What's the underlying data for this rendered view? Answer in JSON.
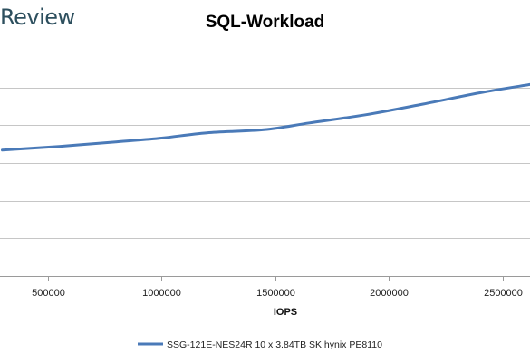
{
  "brand": {
    "text": "Review"
  },
  "chart_data": {
    "type": "line",
    "title": "SQL-Workload",
    "xlabel": "IOPS",
    "ylabel": "",
    "xlim": [
      290000,
      2620000
    ],
    "ylim": [
      0,
      3
    ],
    "x_ticks": [
      500000,
      1000000,
      1500000,
      2000000,
      2500000
    ],
    "y_gridlines": [
      0,
      0.5,
      1,
      1.5,
      2,
      2.5
    ],
    "y_tick_labels_visible": false,
    "grid": true,
    "legend": "bottom",
    "series": [
      {
        "name": "SSG-121E-NES24R 10 x 3.84TB SK hynix PE8110",
        "color": "#4a7ab8",
        "x": [
          300000,
          550000,
          800000,
          1000000,
          1200000,
          1450000,
          1650000,
          1900000,
          2150000,
          2400000,
          2620000
        ],
        "y": [
          1.67,
          1.72,
          1.78,
          1.83,
          1.9,
          1.94,
          2.03,
          2.14,
          2.28,
          2.43,
          2.54
        ]
      }
    ]
  }
}
